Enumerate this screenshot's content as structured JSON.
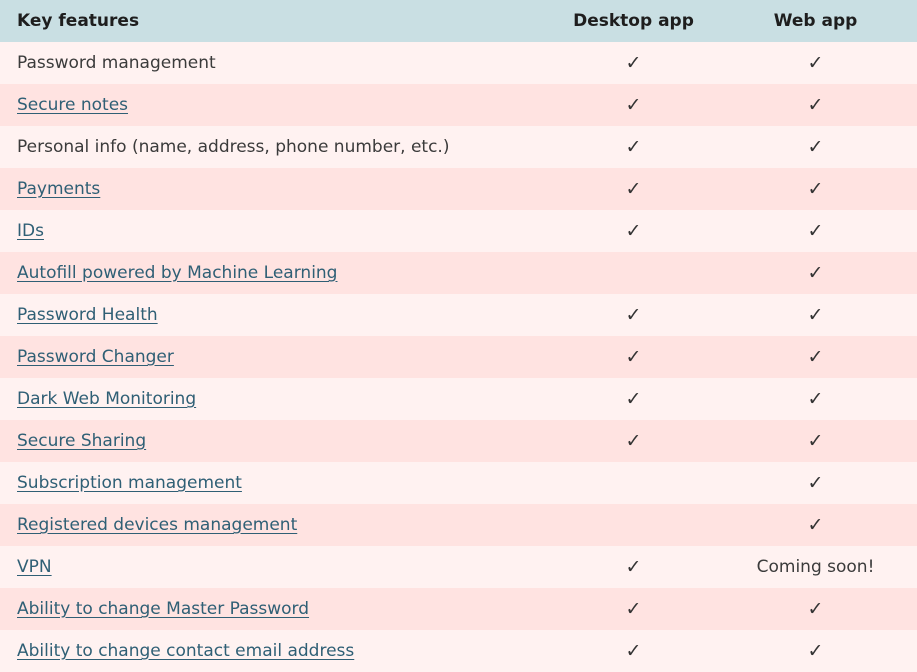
{
  "header": {
    "feature": "Key features",
    "desktop": "Desktop app",
    "web": "Web app"
  },
  "rows": [
    {
      "feature": "Password management",
      "link": false,
      "desktop": "✓",
      "web": "✓"
    },
    {
      "feature": "Secure notes",
      "link": true,
      "desktop": "✓",
      "web": "✓"
    },
    {
      "feature": "Personal info (name, address, phone number, etc.)",
      "link": false,
      "desktop": "✓",
      "web": "✓"
    },
    {
      "feature": "Payments",
      "link": true,
      "desktop": "✓",
      "web": "✓"
    },
    {
      "feature": "IDs",
      "link": true,
      "desktop": "✓",
      "web": "✓"
    },
    {
      "feature": "Autofill powered by Machine Learning",
      "link": true,
      "desktop": "",
      "web": "✓"
    },
    {
      "feature": "Password Health",
      "link": true,
      "desktop": "✓",
      "web": "✓"
    },
    {
      "feature": "Password Changer",
      "link": true,
      "desktop": "✓",
      "web": "✓"
    },
    {
      "feature": "Dark Web Monitoring",
      "link": true,
      "desktop": "✓",
      "web": "✓"
    },
    {
      "feature": "Secure Sharing",
      "link": true,
      "desktop": "✓",
      "web": "✓"
    },
    {
      "feature": "Subscription management",
      "link": true,
      "desktop": "",
      "web": "✓"
    },
    {
      "feature": "Registered devices management",
      "link": true,
      "desktop": "",
      "web": "✓"
    },
    {
      "feature": "VPN",
      "link": true,
      "desktop": "✓",
      "web": "Coming soon!"
    },
    {
      "feature": "Ability to change Master Password",
      "link": true,
      "desktop": "✓",
      "web": "✓"
    },
    {
      "feature": "Ability to change contact email address",
      "link": true,
      "desktop": "✓",
      "web": "✓"
    }
  ]
}
